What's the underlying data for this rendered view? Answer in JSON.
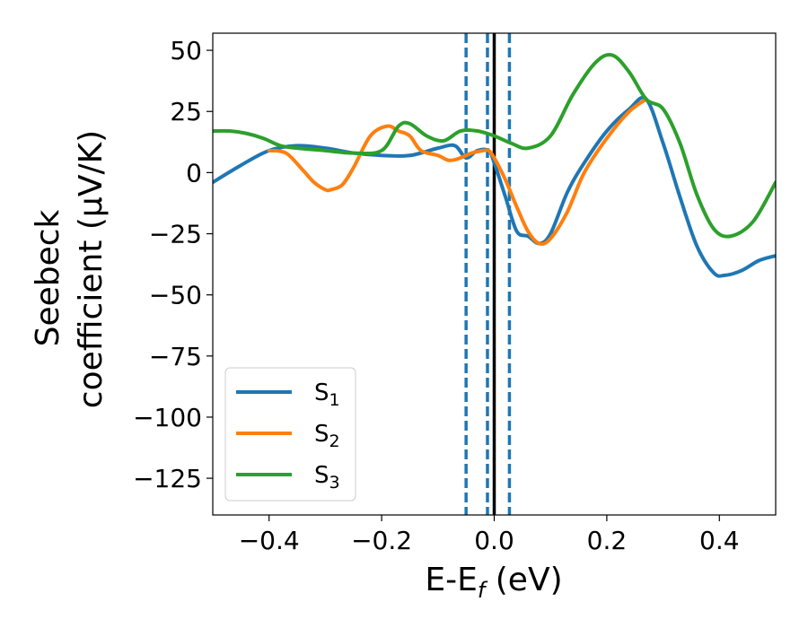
{
  "chart_data": {
    "type": "line",
    "xlabel": "E-E",
    "xlabel_sub": "f",
    "xlabel_unit": " (eV)",
    "ylabel_line1": "Seebeck",
    "ylabel_line2": "coefficient  (μV/K)",
    "xlim": [
      -0.5,
      0.5
    ],
    "ylim": [
      -140,
      57
    ],
    "xticks": [
      -0.4,
      -0.2,
      0.0,
      0.2,
      0.4
    ],
    "xtick_labels": [
      "−0.4",
      "−0.2",
      "0.0",
      "0.2",
      "0.4"
    ],
    "yticks": [
      50,
      25,
      0,
      -25,
      -50,
      -75,
      -100,
      -125
    ],
    "ytick_labels": [
      "50",
      "25",
      "0",
      "−25",
      "−50",
      "−75",
      "−100",
      "−125"
    ],
    "grid": false,
    "legend_position": "bottom-left",
    "series": [
      {
        "name": "S",
        "sub": "1",
        "color": "#1f77b4",
        "x": [
          -0.5,
          -0.45,
          -0.4,
          -0.35,
          -0.3,
          -0.25,
          -0.2,
          -0.15,
          -0.1,
          -0.07,
          -0.05,
          -0.03,
          -0.01,
          0.0,
          0.02,
          0.04,
          0.06,
          0.08,
          0.1,
          0.13,
          0.16,
          0.2,
          0.24,
          0.27,
          0.3,
          0.33,
          0.36,
          0.39,
          0.41,
          0.44,
          0.47,
          0.5
        ],
        "y": [
          -4,
          3,
          9,
          11,
          10,
          8,
          7,
          7,
          10,
          11,
          6,
          9,
          9,
          4,
          -10,
          -24,
          -26,
          -29,
          -25,
          -8,
          4,
          17,
          26,
          30,
          12,
          -10,
          -30,
          -41,
          -42,
          -40,
          -36,
          -34
        ]
      },
      {
        "name": "S",
        "sub": "2",
        "color": "#ff7f0e",
        "x": [
          -0.4,
          -0.37,
          -0.34,
          -0.32,
          -0.3,
          -0.29,
          -0.27,
          -0.25,
          -0.22,
          -0.19,
          -0.17,
          -0.15,
          -0.13,
          -0.1,
          -0.08,
          -0.06,
          -0.04,
          -0.02,
          -0.01,
          0.0,
          0.02,
          0.04,
          0.06,
          0.08,
          0.1,
          0.13,
          0.16,
          0.2,
          0.24,
          0.27
        ],
        "y": [
          9,
          8,
          1,
          -4,
          -7,
          -7,
          -5,
          2,
          15,
          19,
          17,
          15,
          9,
          7,
          5,
          6,
          8,
          9,
          9,
          6,
          -3,
          -14,
          -24,
          -29,
          -27,
          -16,
          0,
          14,
          25,
          30
        ]
      },
      {
        "name": "S",
        "sub": "3",
        "color": "#2ca02c",
        "x": [
          -0.5,
          -0.47,
          -0.44,
          -0.41,
          -0.38,
          -0.35,
          -0.3,
          -0.25,
          -0.2,
          -0.17,
          -0.15,
          -0.12,
          -0.09,
          -0.06,
          -0.03,
          0.0,
          0.03,
          0.06,
          0.1,
          0.14,
          0.18,
          0.21,
          0.24,
          0.27,
          0.3,
          0.33,
          0.36,
          0.39,
          0.42,
          0.46,
          0.5
        ],
        "y": [
          17,
          17,
          16,
          14,
          11,
          10,
          9,
          8,
          9,
          19,
          20,
          15,
          13,
          17,
          17,
          15,
          12,
          10,
          15,
          32,
          45,
          48,
          41,
          30,
          26,
          12,
          -9,
          -23,
          -26,
          -20,
          -4
        ]
      }
    ],
    "vlines": [
      {
        "x": -0.05,
        "style": "dashed",
        "color": "#1f77b4"
      },
      {
        "x": -0.012,
        "style": "dashed",
        "color": "#1f77b4"
      },
      {
        "x": 0.027,
        "style": "dashed",
        "color": "#1f77b4"
      },
      {
        "x": 0.0,
        "style": "solid",
        "color": "#000000"
      }
    ]
  }
}
